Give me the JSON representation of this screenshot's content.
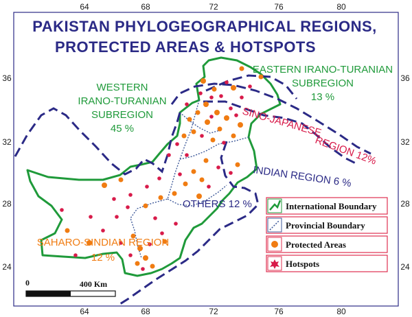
{
  "title": {
    "line1": "PAKISTAN PHYLOGEOGRAPHICAL REGIONS,",
    "line2": "PROTECTED AREAS & HOTSPOTS"
  },
  "axes": {
    "longitudes": [
      "64",
      "68",
      "72",
      "76",
      "80"
    ],
    "latitudes": [
      "36",
      "32",
      "28",
      "24"
    ]
  },
  "regions": {
    "western": {
      "line1": "WESTERN",
      "line2": "IRANO-TURANIAN",
      "line3": "SUBREGION",
      "line4": "45 %"
    },
    "eastern": {
      "line1": "EASTERN IRANO-TURANIAN",
      "line2": "SUBREGION",
      "line3": "13 %"
    },
    "sino": {
      "line1": "SINO-JAPANESE",
      "line2": "REGION 12%"
    },
    "indian": {
      "label": "INDIAN REGION 6 %"
    },
    "others": {
      "label": "OTHERS 12 %"
    },
    "saharo": {
      "line1": "SAHARO-SINDIAN REGION",
      "line2": "12 %"
    }
  },
  "legend": {
    "international": "International Boundary",
    "provincial": "Provincial Boundary",
    "protected": "Protected Areas",
    "hotspots": "Hotspots"
  },
  "scale": {
    "start": "0",
    "end": "400 Km"
  },
  "colors": {
    "frame": "#2b2a86",
    "international_boundary": "#1f9a3a",
    "provincial_boundary": "#3f5a9a",
    "region_boundary": "#2b2a86",
    "protected_area": "#f07c12",
    "hotspot": "#d81b4a"
  }
}
